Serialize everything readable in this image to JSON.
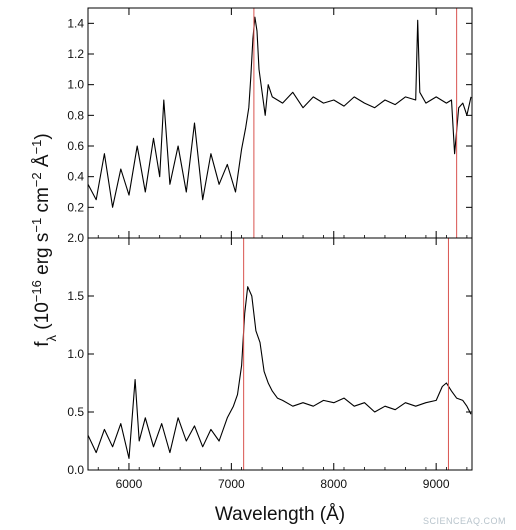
{
  "chart_data": {
    "type": "line",
    "xlabel": "Wavelength (Å)",
    "ylabel_parts": [
      "f",
      "λ",
      " (10",
      "−16",
      " erg s",
      "−1",
      " cm",
      "−2",
      " Å",
      "−1",
      ")"
    ],
    "xlim": [
      5600,
      9350
    ],
    "xticks": [
      6000,
      7000,
      8000,
      9000
    ],
    "line_color": "#000000",
    "marker_color": "#d9534f",
    "panels": [
      {
        "name": "top",
        "ylim": [
          0.0,
          1.5
        ],
        "yticks": [
          0.2,
          0.4,
          0.6,
          0.8,
          1.0,
          1.2,
          1.4
        ],
        "ytick_labels": [
          "0.2",
          "0.4",
          "0.6",
          "0.8",
          "1.0",
          "1.2",
          "1.4"
        ],
        "vlines": [
          7220,
          9200
        ],
        "x": [
          5600,
          5680,
          5760,
          5840,
          5920,
          6000,
          6080,
          6160,
          6240,
          6300,
          6340,
          6400,
          6480,
          6560,
          6640,
          6720,
          6800,
          6880,
          6960,
          7040,
          7100,
          7140,
          7170,
          7190,
          7210,
          7230,
          7250,
          7270,
          7300,
          7330,
          7360,
          7400,
          7500,
          7600,
          7700,
          7800,
          7900,
          8000,
          8100,
          8200,
          8300,
          8400,
          8500,
          8600,
          8700,
          8800,
          8820,
          8840,
          8900,
          9000,
          9100,
          9150,
          9180,
          9220,
          9260,
          9300,
          9340
        ],
        "values": [
          0.35,
          0.25,
          0.55,
          0.2,
          0.45,
          0.28,
          0.6,
          0.3,
          0.65,
          0.4,
          0.9,
          0.35,
          0.6,
          0.3,
          0.75,
          0.25,
          0.55,
          0.35,
          0.48,
          0.3,
          0.58,
          0.72,
          0.85,
          1.05,
          1.3,
          1.44,
          1.35,
          1.1,
          0.95,
          0.8,
          1.0,
          0.92,
          0.88,
          0.95,
          0.85,
          0.92,
          0.88,
          0.9,
          0.86,
          0.92,
          0.88,
          0.85,
          0.9,
          0.87,
          0.92,
          0.9,
          1.42,
          0.95,
          0.88,
          0.92,
          0.88,
          0.9,
          0.55,
          0.85,
          0.88,
          0.8,
          0.92
        ]
      },
      {
        "name": "bottom",
        "ylim": [
          0.0,
          2.0
        ],
        "yticks": [
          0.0,
          0.5,
          1.0,
          1.5,
          2.0
        ],
        "ytick_labels": [
          "0.0",
          "0.5",
          "1.0",
          "1.5",
          "2.0"
        ],
        "vlines": [
          7120,
          9120
        ],
        "x": [
          5600,
          5680,
          5760,
          5840,
          5920,
          6000,
          6060,
          6100,
          6160,
          6240,
          6320,
          6400,
          6480,
          6560,
          6640,
          6720,
          6800,
          6880,
          6960,
          7020,
          7060,
          7100,
          7130,
          7160,
          7200,
          7240,
          7280,
          7320,
          7360,
          7400,
          7450,
          7500,
          7600,
          7700,
          7800,
          7900,
          8000,
          8100,
          8200,
          8300,
          8400,
          8500,
          8600,
          8700,
          8800,
          8900,
          9000,
          9060,
          9100,
          9150,
          9200,
          9260,
          9300,
          9340
        ],
        "values": [
          0.3,
          0.15,
          0.35,
          0.2,
          0.4,
          0.1,
          0.78,
          0.25,
          0.45,
          0.2,
          0.4,
          0.15,
          0.45,
          0.25,
          0.38,
          0.2,
          0.35,
          0.25,
          0.45,
          0.55,
          0.65,
          0.9,
          1.35,
          1.58,
          1.5,
          1.2,
          1.1,
          0.85,
          0.75,
          0.68,
          0.62,
          0.6,
          0.55,
          0.58,
          0.55,
          0.6,
          0.58,
          0.62,
          0.55,
          0.58,
          0.5,
          0.55,
          0.52,
          0.58,
          0.55,
          0.58,
          0.6,
          0.72,
          0.75,
          0.68,
          0.62,
          0.6,
          0.55,
          0.48
        ]
      }
    ]
  },
  "watermark": "SCIENCEAQ.COM"
}
